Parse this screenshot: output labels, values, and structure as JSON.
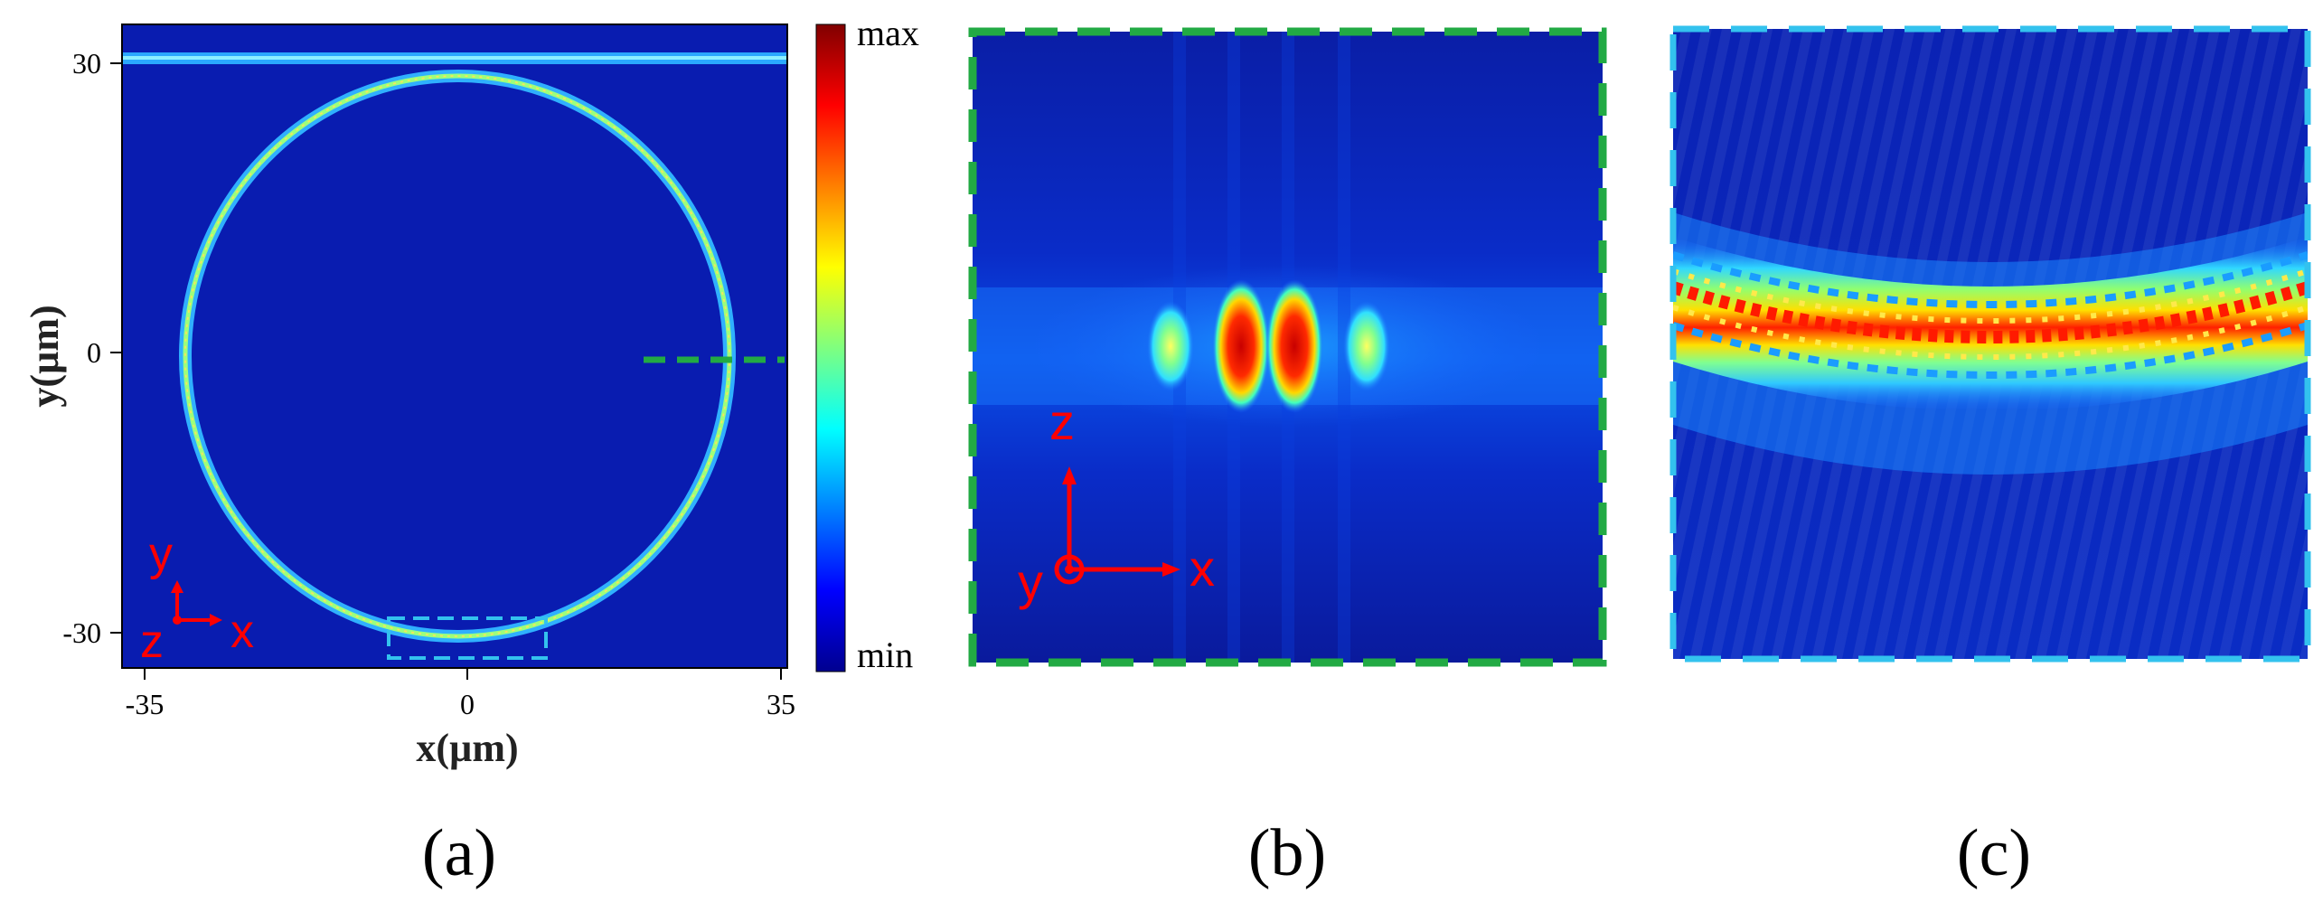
{
  "panel_a": {
    "xlabel": "x(µm)",
    "ylabel": "y(µm)",
    "x_ticks": [
      "-35",
      "0",
      "35"
    ],
    "y_ticks": [
      "30",
      "0",
      "-30"
    ],
    "axes_glyph": {
      "up": "y",
      "right": "x",
      "out": "z"
    }
  },
  "colorbar": {
    "max_label": "max",
    "min_label": "min"
  },
  "panel_b": {
    "axes_glyph": {
      "up": "z",
      "right": "x",
      "out": "y"
    }
  },
  "panel_labels": {
    "a": "(a)",
    "b": "(b)",
    "c": "(c)"
  },
  "colors": {
    "field_background": "#0a1aa8",
    "dash_green": "#22aa44",
    "dash_cyan": "#33c2ee",
    "axis_red": "#ff0000"
  }
}
